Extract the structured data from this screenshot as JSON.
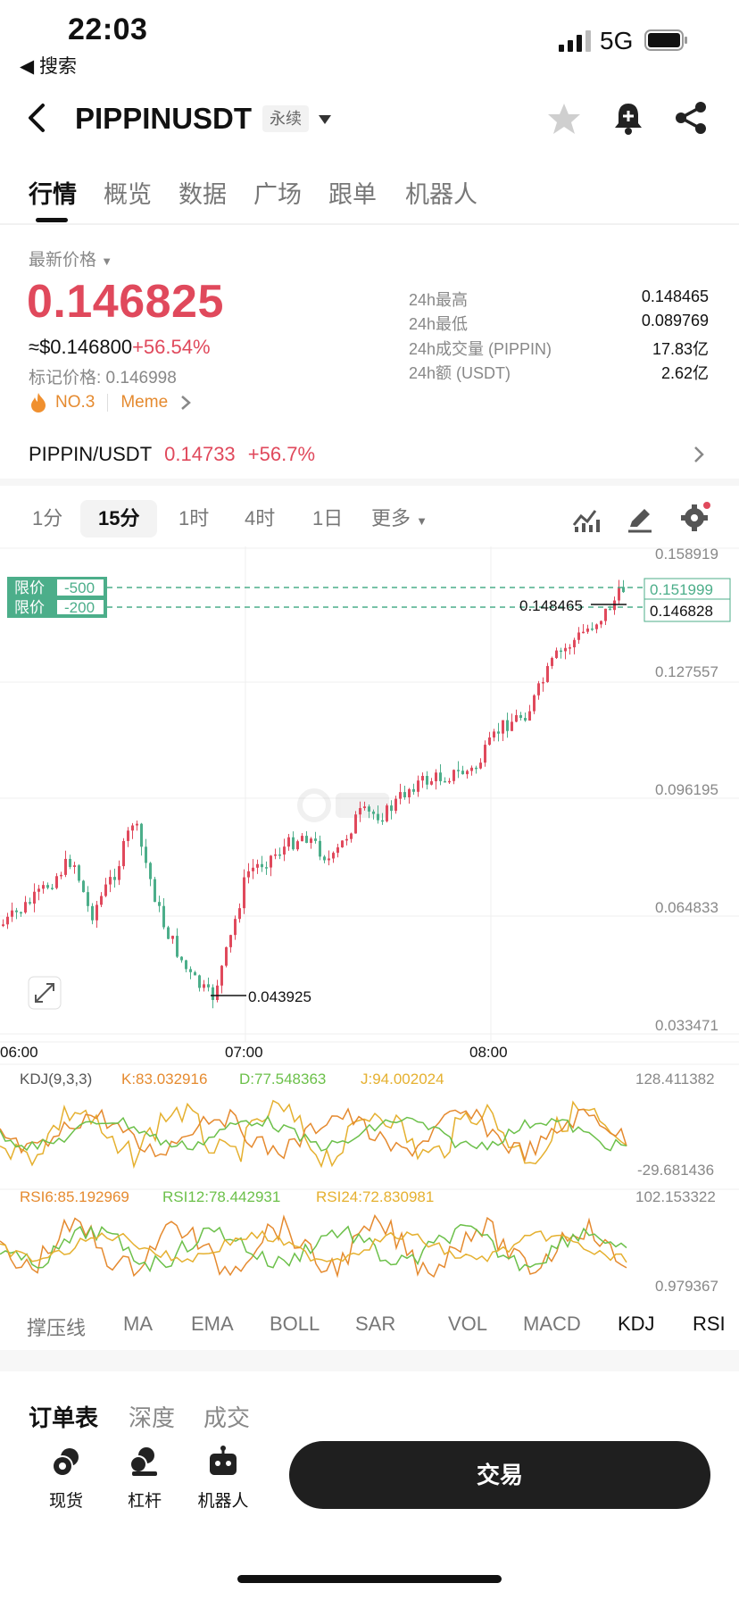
{
  "status_bar": {
    "time": "22:03",
    "back_app": "◀ 搜索",
    "network": "5G"
  },
  "header": {
    "title": "PIPPINUSDT",
    "tag": "永续"
  },
  "tabs": [
    "行情",
    "概览",
    "数据",
    "广场",
    "跟单",
    "机器人"
  ],
  "price": {
    "latest_label": "最新价格",
    "latest": "0.146825",
    "usd": "≈$0.146800",
    "change": "+56.54%",
    "mark": "标记价格: 0.146998",
    "rank": "NO.3",
    "category": "Meme"
  },
  "stats": [
    {
      "label": "24h最高",
      "value": "0.148465"
    },
    {
      "label": "24h最低",
      "value": "0.089769"
    },
    {
      "label": "24h成交量 (PIPPIN)",
      "value": "17.83亿"
    },
    {
      "label": "24h额 (USDT)",
      "value": "2.62亿"
    }
  ],
  "spot": {
    "pair": "PIPPIN/USDT",
    "price": "0.14733",
    "change": "+56.7%"
  },
  "intervals": {
    "items": [
      "1分",
      "15分",
      "1时",
      "4时",
      "1日"
    ],
    "more": "更多",
    "active": "15分"
  },
  "chart_data": {
    "type": "candlestick",
    "y_axis_ticks": [
      "0.158919",
      "0.127557",
      "0.096195",
      "0.064833",
      "0.033471"
    ],
    "x_axis_ticks": [
      "06:00",
      "07:00",
      "08:00"
    ],
    "high_marker": "0.148465",
    "low_marker": "0.043925",
    "current_price_tag": "0.146828",
    "order_lines": [
      {
        "label": "限价",
        "qty": "-500",
        "price": "0.151999"
      },
      {
        "label": "限价",
        "qty": "-200"
      }
    ],
    "colors": {
      "up": "#e0495c",
      "down": "#4cae8a"
    },
    "kdj": {
      "title": "KDJ(9,3,3)",
      "k": "K:83.032916",
      "d": "D:77.548363",
      "j": "J:94.002024",
      "max": "128.411382",
      "min": "-29.681436"
    },
    "rsi": {
      "rsi6": "RSI6:85.192969",
      "rsi12": "RSI12:78.442931",
      "rsi24": "RSI24:72.830981",
      "max": "102.153322",
      "min": "0.979367"
    }
  },
  "indicator_tabs": [
    "撑压线",
    "MA",
    "EMA",
    "BOLL",
    "SAR",
    "VOL",
    "MACD",
    "KDJ",
    "RSI"
  ],
  "book_tabs": [
    "订单表",
    "深度",
    "成交"
  ],
  "bottom_nav": [
    "现货",
    "杠杆",
    "机器人"
  ],
  "trade_button": "交易"
}
